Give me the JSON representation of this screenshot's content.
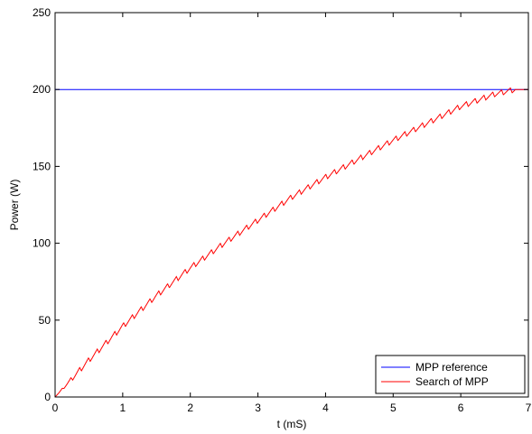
{
  "chart_data": {
    "type": "line",
    "title": "",
    "xlabel": "t (mS)",
    "ylabel": "Power (W)",
    "xlim": [
      0,
      7
    ],
    "ylim": [
      0,
      250
    ],
    "xticks": [
      0,
      1,
      2,
      3,
      4,
      5,
      6,
      7
    ],
    "yticks": [
      0,
      50,
      100,
      150,
      200,
      250
    ],
    "xtick_labels": [
      "0",
      "1",
      "2",
      "3",
      "4",
      "5",
      "6",
      "7"
    ],
    "ytick_labels": [
      "0",
      "50",
      "100",
      "150",
      "200",
      "250"
    ],
    "grid": false,
    "legend_position": "bottom-right",
    "series": [
      {
        "name": "MPP reference",
        "color": "#0000ff",
        "x": [
          0,
          7
        ],
        "y": [
          200,
          200
        ]
      },
      {
        "name": "Search of MPP",
        "color": "#ff0000",
        "x": [
          0,
          0.5,
          1,
          1.5,
          2,
          2.5,
          3,
          3.5,
          4,
          4.5,
          5,
          5.5,
          6,
          6.5,
          6.8,
          7
        ],
        "y": [
          0,
          24,
          46,
          66,
          84,
          100,
          115,
          130,
          143,
          155,
          167,
          178,
          189,
          197,
          200,
          200
        ],
        "sawtooth_amplitude": 3.5,
        "sawtooth_period": 0.13
      }
    ]
  }
}
